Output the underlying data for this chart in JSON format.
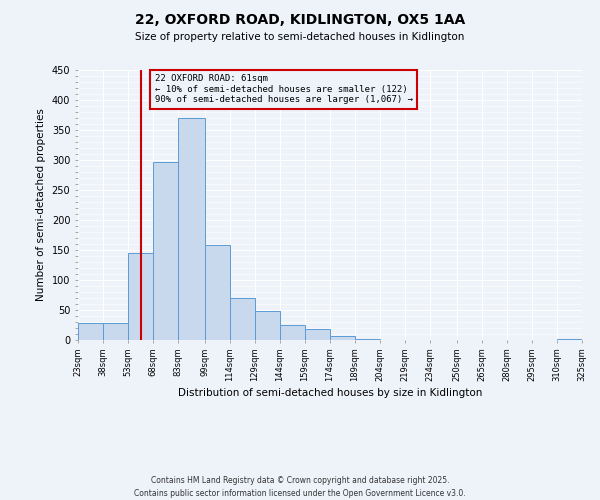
{
  "title": "22, OXFORD ROAD, KIDLINGTON, OX5 1AA",
  "subtitle": "Size of property relative to semi-detached houses in Kidlington",
  "xlabel": "Distribution of semi-detached houses by size in Kidlington",
  "ylabel": "Number of semi-detached properties",
  "bar_edges": [
    23,
    38,
    53,
    68,
    83,
    99,
    114,
    129,
    144,
    159,
    174,
    189,
    204,
    219,
    234,
    250,
    265,
    280,
    295,
    310,
    325
  ],
  "bar_heights": [
    28,
    28,
    145,
    297,
    370,
    158,
    70,
    48,
    25,
    18,
    6,
    1,
    0,
    0,
    0,
    0,
    0,
    0,
    0,
    1
  ],
  "bar_color": "#c9d9ed",
  "bar_edge_color": "#5b9bd5",
  "property_value": 61,
  "annotation_title": "22 OXFORD ROAD: 61sqm",
  "annotation_line1": "← 10% of semi-detached houses are smaller (122)",
  "annotation_line2": "90% of semi-detached houses are larger (1,067) →",
  "vline_color": "#cc0000",
  "annotation_box_color": "#cc0000",
  "ylim": [
    0,
    450
  ],
  "footnote1": "Contains HM Land Registry data © Crown copyright and database right 2025.",
  "footnote2": "Contains public sector information licensed under the Open Government Licence v3.0.",
  "bg_color": "#eef2f9",
  "grid_color": "#ffffff",
  "tick_labels": [
    "23sqm",
    "38sqm",
    "53sqm",
    "68sqm",
    "83sqm",
    "99sqm",
    "114sqm",
    "129sqm",
    "144sqm",
    "159sqm",
    "174sqm",
    "189sqm",
    "204sqm",
    "219sqm",
    "234sqm",
    "250sqm",
    "265sqm",
    "280sqm",
    "295sqm",
    "310sqm",
    "325sqm"
  ]
}
